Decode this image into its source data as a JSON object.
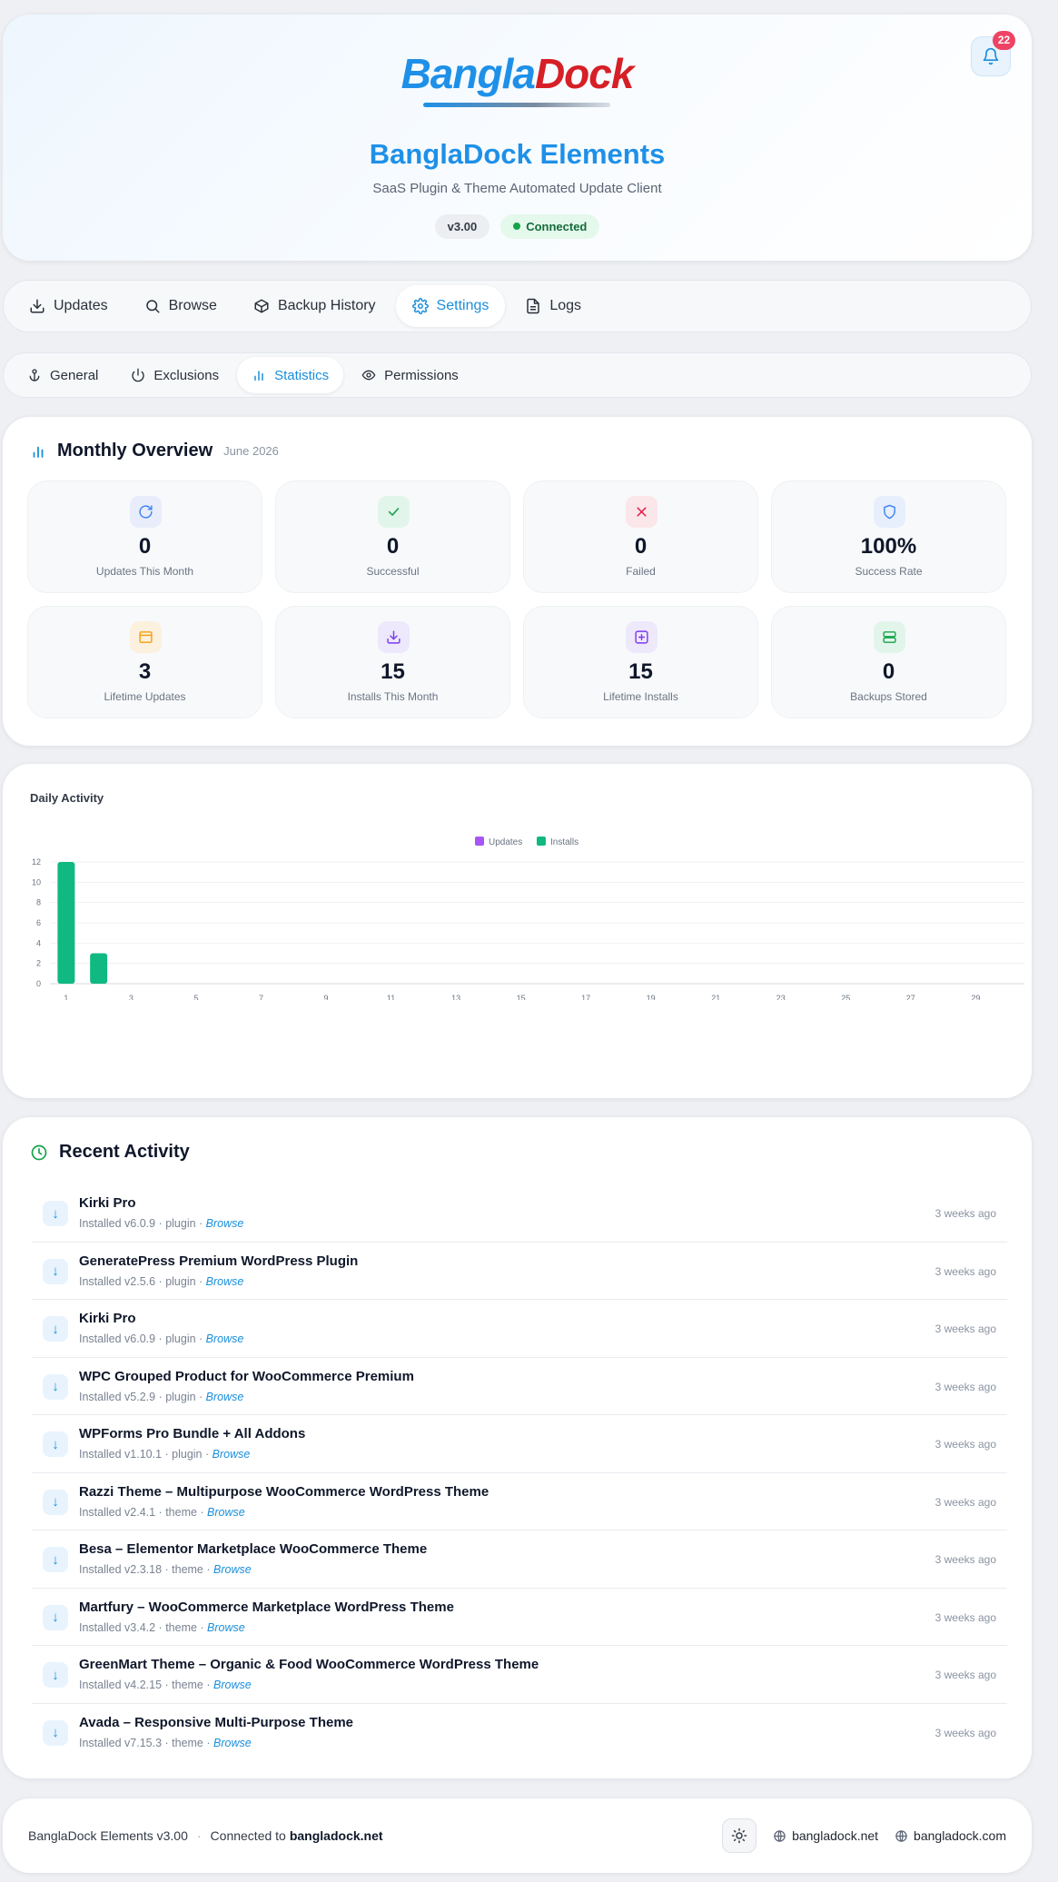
{
  "header": {
    "logo_part1": "Bangla",
    "logo_part2": "Dock",
    "title": "BanglaDock Elements",
    "subtitle": "SaaS Plugin & Theme Automated Update Client",
    "version": "v3.00",
    "status": "Connected",
    "notification_count": "22"
  },
  "main_tabs": [
    {
      "label": "Updates",
      "icon": "download-icon"
    },
    {
      "label": "Browse",
      "icon": "search-icon"
    },
    {
      "label": "Backup History",
      "icon": "box-icon"
    },
    {
      "label": "Settings",
      "icon": "gear-icon",
      "active": true
    },
    {
      "label": "Logs",
      "icon": "document-icon"
    }
  ],
  "sub_tabs": [
    {
      "label": "General",
      "icon": "anchor-icon"
    },
    {
      "label": "Exclusions",
      "icon": "power-icon"
    },
    {
      "label": "Statistics",
      "icon": "bar-chart-icon",
      "active": true
    },
    {
      "label": "Permissions",
      "icon": "eye-icon"
    }
  ],
  "overview": {
    "title": "Monthly Overview",
    "date": "June 2026",
    "stats": [
      {
        "value": "0",
        "label": "Updates This Month",
        "icon": "refresh-icon",
        "color": "#3b82f6",
        "bg": "#e9edfb"
      },
      {
        "value": "0",
        "label": "Successful",
        "icon": "check-icon",
        "color": "#16a34a",
        "bg": "#e2f5ea"
      },
      {
        "value": "0",
        "label": "Failed",
        "icon": "x-icon",
        "color": "#e11d48",
        "bg": "#fbe6ea"
      },
      {
        "value": "100%",
        "label": "Success Rate",
        "icon": "shield-icon",
        "color": "#3b82f6",
        "bg": "#e7eefc"
      },
      {
        "value": "3",
        "label": "Lifetime Updates",
        "icon": "calendar-icon",
        "color": "#f59e0b",
        "bg": "#fcf0df"
      },
      {
        "value": "15",
        "label": "Installs This Month",
        "icon": "download-icon",
        "color": "#7c3aed",
        "bg": "#ede8fb"
      },
      {
        "value": "15",
        "label": "Lifetime Installs",
        "icon": "plus-square-icon",
        "color": "#7c3aed",
        "bg": "#eee8fb"
      },
      {
        "value": "0",
        "label": "Backups Stored",
        "icon": "server-icon",
        "color": "#16a34a",
        "bg": "#e2f5ea"
      }
    ]
  },
  "daily": {
    "title": "Daily Activity"
  },
  "chart_data": {
    "type": "bar",
    "x": [
      1,
      2,
      3,
      4,
      5,
      6,
      7,
      8,
      9,
      10,
      11,
      12,
      13,
      14,
      15,
      16,
      17,
      18,
      19,
      20,
      21,
      22,
      23,
      24,
      25,
      26,
      27,
      28,
      29,
      30
    ],
    "x_tick_labels": [
      "1",
      "3",
      "5",
      "7",
      "9",
      "11",
      "13",
      "15",
      "17",
      "19",
      "21",
      "23",
      "25",
      "27",
      "29"
    ],
    "series": [
      {
        "name": "Updates",
        "color": "#a855f7",
        "values": [
          0,
          0,
          0,
          0,
          0,
          0,
          0,
          0,
          0,
          0,
          0,
          0,
          0,
          0,
          0,
          0,
          0,
          0,
          0,
          0,
          0,
          0,
          0,
          0,
          0,
          0,
          0,
          0,
          0,
          0
        ]
      },
      {
        "name": "Installs",
        "color": "#10b981",
        "values": [
          12,
          3,
          0,
          0,
          0,
          0,
          0,
          0,
          0,
          0,
          0,
          0,
          0,
          0,
          0,
          0,
          0,
          0,
          0,
          0,
          0,
          0,
          0,
          0,
          0,
          0,
          0,
          0,
          0,
          0
        ]
      }
    ],
    "ylim": [
      0,
      12
    ],
    "y_ticks": [
      0,
      2,
      4,
      6,
      8,
      10,
      12
    ],
    "legend": "top-center",
    "grid": true
  },
  "recent": {
    "title": "Recent Activity",
    "items": [
      {
        "name": "Kirki Pro",
        "meta": "Installed v6.0.9 · plugin · ",
        "source": "Browse",
        "time": "3 weeks ago"
      },
      {
        "name": "GeneratePress Premium WordPress Plugin",
        "meta": "Installed v2.5.6 · plugin · ",
        "source": "Browse",
        "time": "3 weeks ago"
      },
      {
        "name": "Kirki Pro",
        "meta": "Installed v6.0.9 · plugin · ",
        "source": "Browse",
        "time": "3 weeks ago"
      },
      {
        "name": "WPC Grouped Product for WooCommerce Premium",
        "meta": "Installed v5.2.9 · plugin · ",
        "source": "Browse",
        "time": "3 weeks ago"
      },
      {
        "name": "WPForms Pro Bundle + All Addons",
        "meta": "Installed v1.10.1 · plugin · ",
        "source": "Browse",
        "time": "3 weeks ago"
      },
      {
        "name": "Razzi Theme – Multipurpose WooCommerce WordPress Theme",
        "meta": "Installed v2.4.1 · theme · ",
        "source": "Browse",
        "time": "3 weeks ago"
      },
      {
        "name": "Besa – Elementor Marketplace WooCommerce Theme",
        "meta": "Installed v2.3.18 · theme · ",
        "source": "Browse",
        "time": "3 weeks ago"
      },
      {
        "name": "Martfury – WooCommerce Marketplace WordPress Theme",
        "meta": "Installed v3.4.2 · theme · ",
        "source": "Browse",
        "time": "3 weeks ago"
      },
      {
        "name": "GreenMart Theme – Organic & Food WooCommerce WordPress Theme",
        "meta": "Installed v4.2.15 · theme · ",
        "source": "Browse",
        "time": "3 weeks ago"
      },
      {
        "name": "Avada – Responsive Multi-Purpose Theme",
        "meta": "Installed v7.15.3 · theme · ",
        "source": "Browse",
        "time": "3 weeks ago"
      }
    ]
  },
  "footer": {
    "app": "BanglaDock Elements v3.00",
    "sep": "·",
    "connected_prefix": "Connected to",
    "connected_host": "bangladock.net",
    "link1": "bangladock.net",
    "link2": "bangladock.com"
  }
}
